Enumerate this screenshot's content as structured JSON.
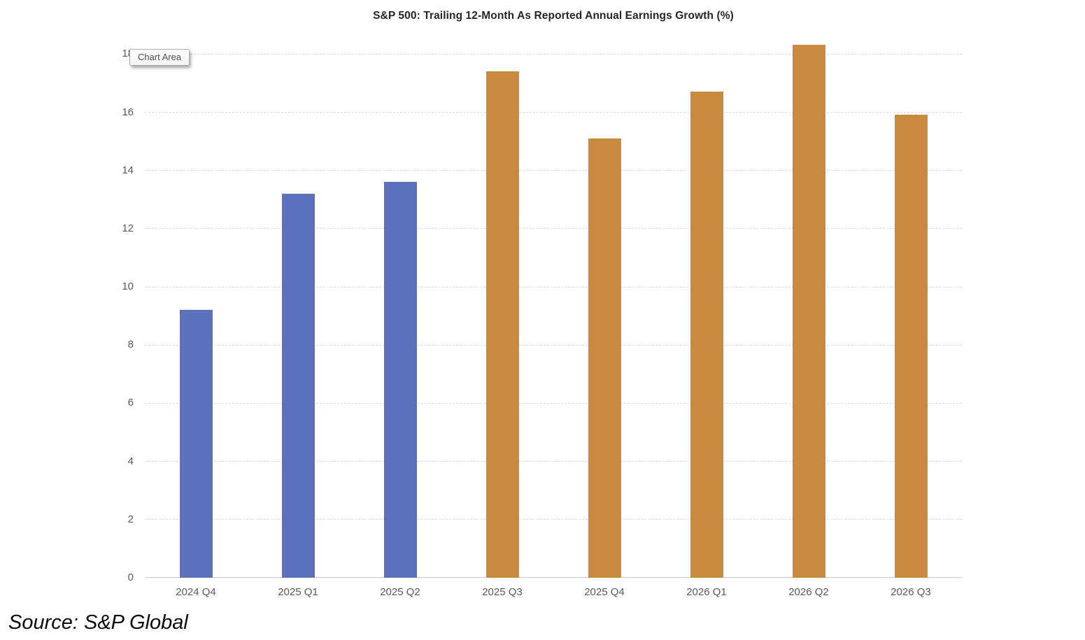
{
  "tooltip": {
    "label": "Chart Area"
  },
  "footer": {
    "source_label": "Source: S&P Global"
  },
  "colors": {
    "reported_bar": "#5C71BC",
    "estimate_bar": "#C98A40",
    "gridline": "#D9D9D9",
    "axis_line": "#C9C9C9",
    "axis_text": "#595959",
    "title_text": "#262626"
  },
  "chart_data": {
    "type": "bar",
    "title": "S&P 500: Trailing 12-Month As Reported Annual Earnings Growth (%)",
    "categories": [
      "2024 Q4",
      "2025 Q1",
      "2025 Q2",
      "2025 Q3",
      "2025 Q4",
      "2026 Q1",
      "2026 Q2",
      "2026 Q3"
    ],
    "values": [
      9.2,
      13.2,
      13.6,
      17.4,
      15.1,
      16.7,
      18.3,
      15.9
    ],
    "bar_colors": [
      "#5C71BC",
      "#5C71BC",
      "#5C71BC",
      "#C98A40",
      "#C98A40",
      "#C98A40",
      "#C98A40",
      "#C98A40"
    ],
    "xlabel": "",
    "ylabel": "",
    "ylim": [
      0,
      18.6
    ],
    "y_ticks": [
      0,
      2,
      4,
      6,
      8,
      10,
      12,
      14,
      16,
      18
    ],
    "grid": "horizontal-dashed",
    "legend": "none"
  }
}
